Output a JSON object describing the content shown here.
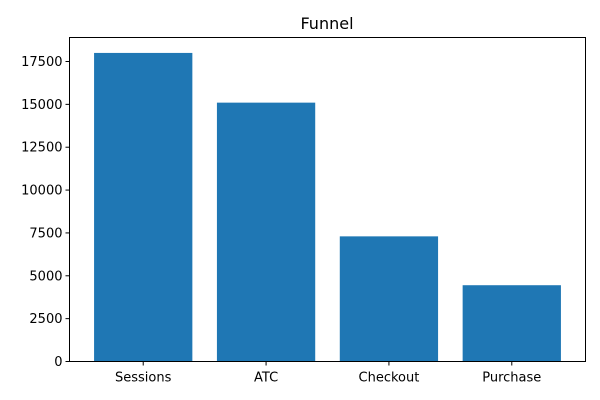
{
  "chart_data": {
    "type": "bar",
    "title": "Funnel",
    "xlabel": "",
    "ylabel": "",
    "categories": [
      "Sessions",
      "ATC",
      "Checkout",
      "Purchase"
    ],
    "values": [
      18000,
      15100,
      7300,
      4450
    ],
    "ylim": [
      0,
      18900
    ],
    "yticks": [
      0,
      2500,
      5000,
      7500,
      10000,
      12500,
      15000,
      17500
    ],
    "grid": false,
    "legend": "none",
    "bar_color": "#1f77b4"
  }
}
